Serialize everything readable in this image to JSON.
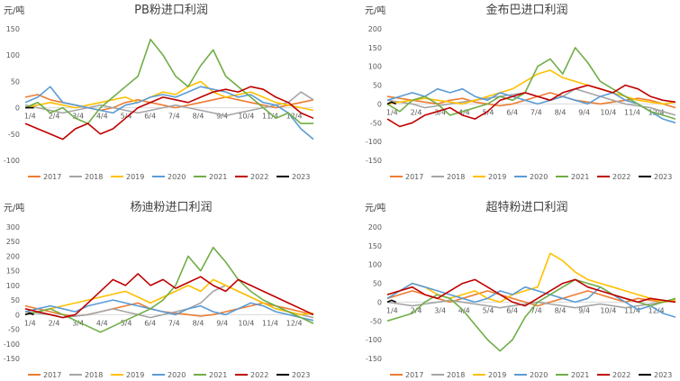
{
  "colors": {
    "2017": "#ED7D31",
    "2018": "#A5A5A5",
    "2019": "#FFC000",
    "2020": "#5B9BD5",
    "2021": "#70AD47",
    "2022": "#C00000",
    "2023": "#000000"
  },
  "chart_data": [
    {
      "type": "line",
      "title": "PB粉进口利润",
      "unit_label": "元/吨",
      "yticks": [
        150,
        100,
        50,
        0,
        -50,
        -100
      ],
      "ylim": [
        -100,
        150
      ],
      "xtick_labels": [
        "1/4",
        "2/4",
        "3/4",
        "4/4",
        "5/4",
        "6/4",
        "7/4",
        "8/4",
        "9/4",
        "10/4",
        "11/4",
        "12/4"
      ],
      "legend": [
        "2017",
        "2018",
        "2019",
        "2020",
        "2021",
        "2022",
        "2023"
      ],
      "series": [
        {
          "name": "2017",
          "values": [
            20,
            25,
            15,
            10,
            5,
            0,
            -5,
            0,
            10,
            15,
            10,
            5,
            0,
            5,
            10,
            15,
            20,
            15,
            10,
            5,
            0,
            5,
            10,
            15
          ]
        },
        {
          "name": "2018",
          "values": [
            5,
            0,
            -5,
            -10,
            -5,
            0,
            5,
            0,
            -5,
            -10,
            -5,
            0,
            5,
            0,
            -5,
            -10,
            -15,
            -10,
            -5,
            0,
            5,
            10,
            30,
            15
          ]
        },
        {
          "name": "2019",
          "values": [
            0,
            5,
            10,
            5,
            0,
            5,
            10,
            15,
            20,
            10,
            20,
            30,
            25,
            40,
            50,
            30,
            20,
            25,
            30,
            20,
            10,
            5,
            0,
            -5
          ]
        },
        {
          "name": "2020",
          "values": [
            10,
            20,
            40,
            10,
            5,
            0,
            -5,
            -10,
            5,
            10,
            20,
            25,
            20,
            30,
            40,
            35,
            30,
            20,
            25,
            10,
            5,
            -10,
            -40,
            -60
          ]
        },
        {
          "name": "2021",
          "values": [
            0,
            10,
            -10,
            0,
            -20,
            -30,
            0,
            20,
            40,
            60,
            130,
            100,
            60,
            40,
            80,
            110,
            60,
            40,
            20,
            0,
            -20,
            -10,
            -30,
            -30
          ]
        },
        {
          "name": "2022",
          "values": [
            -30,
            -40,
            -50,
            -60,
            -40,
            -30,
            -50,
            -40,
            -20,
            0,
            10,
            20,
            15,
            10,
            20,
            30,
            35,
            30,
            40,
            35,
            20,
            10,
            -10,
            -20
          ]
        },
        {
          "name": "2023",
          "values": [
            0,
            0,
            0
          ]
        }
      ]
    },
    {
      "type": "line",
      "title": "金布巴进口利润",
      "unit_label": "元/吨",
      "yticks": [
        200,
        150,
        100,
        50,
        0,
        -50,
        -100,
        -150
      ],
      "ylim": [
        -150,
        200
      ],
      "xtick_labels": [
        "1/4",
        "2/4",
        "3/4",
        "4/4",
        "5/4",
        "6/4",
        "7/4",
        "8/4",
        "9/4",
        "10/4",
        "11/4",
        "12/4"
      ],
      "legend": [
        "2017",
        "2018",
        "2019",
        "2020",
        "2021",
        "2022",
        "2023"
      ],
      "series": [
        {
          "name": "2017",
          "values": [
            20,
            15,
            10,
            5,
            0,
            10,
            15,
            5,
            0,
            -5,
            0,
            10,
            20,
            30,
            20,
            10,
            5,
            0,
            5,
            10,
            15,
            10,
            0,
            -10
          ]
        },
        {
          "name": "2018",
          "values": [
            10,
            5,
            0,
            -10,
            -5,
            0,
            5,
            10,
            15,
            20,
            25,
            30,
            20,
            10,
            20,
            40,
            30,
            20,
            10,
            0,
            -5,
            -10,
            -20,
            -30
          ]
        },
        {
          "name": "2019",
          "values": [
            0,
            5,
            10,
            15,
            10,
            5,
            0,
            10,
            20,
            30,
            40,
            60,
            80,
            90,
            70,
            60,
            50,
            40,
            30,
            20,
            10,
            5,
            0,
            5
          ]
        },
        {
          "name": "2020",
          "values": [
            10,
            20,
            30,
            20,
            40,
            30,
            40,
            20,
            10,
            30,
            20,
            10,
            0,
            10,
            20,
            10,
            0,
            20,
            30,
            10,
            0,
            -20,
            -40,
            -50
          ]
        },
        {
          "name": "2021",
          "values": [
            0,
            -20,
            10,
            20,
            0,
            -30,
            -20,
            -10,
            0,
            20,
            10,
            30,
            100,
            120,
            80,
            150,
            110,
            60,
            40,
            20,
            0,
            -20,
            -30,
            -40
          ]
        },
        {
          "name": "2022",
          "values": [
            -40,
            -60,
            -50,
            -30,
            -20,
            -10,
            -30,
            -40,
            -20,
            10,
            20,
            30,
            20,
            10,
            30,
            40,
            50,
            40,
            30,
            50,
            40,
            20,
            10,
            5
          ]
        },
        {
          "name": "2023",
          "values": [
            0,
            5,
            0
          ]
        }
      ]
    },
    {
      "type": "line",
      "title": "杨迪粉进口利润",
      "unit_label": "元/吨",
      "yticks": [
        300,
        250,
        200,
        150,
        100,
        50,
        0,
        -50,
        -100,
        -150
      ],
      "ylim": [
        -150,
        300
      ],
      "xtick_labels": [
        "1/4",
        "2/4",
        "3/4",
        "4/4",
        "5/4",
        "6/4",
        "7/4",
        "8/4",
        "9/4",
        "10/4",
        "11/4",
        "12/4"
      ],
      "legend": [
        "2017",
        "2018",
        "2019",
        "2020",
        "2021",
        "2022",
        "2023"
      ],
      "series": [
        {
          "name": "2017",
          "values": [
            30,
            20,
            10,
            0,
            -5,
            0,
            10,
            20,
            30,
            40,
            20,
            10,
            5,
            0,
            -5,
            0,
            10,
            20,
            30,
            40,
            30,
            20,
            10,
            0
          ]
        },
        {
          "name": "2018",
          "values": [
            10,
            5,
            0,
            -10,
            -5,
            0,
            10,
            20,
            10,
            0,
            -10,
            0,
            10,
            20,
            40,
            80,
            100,
            80,
            60,
            40,
            20,
            10,
            0,
            -10
          ]
        },
        {
          "name": "2019",
          "values": [
            0,
            10,
            20,
            30,
            40,
            50,
            60,
            70,
            80,
            60,
            40,
            60,
            80,
            100,
            80,
            120,
            100,
            80,
            60,
            40,
            20,
            10,
            0,
            5
          ]
        },
        {
          "name": "2020",
          "values": [
            10,
            20,
            30,
            20,
            10,
            30,
            40,
            50,
            40,
            30,
            20,
            10,
            0,
            20,
            30,
            10,
            0,
            20,
            40,
            30,
            10,
            0,
            -10,
            -20
          ]
        },
        {
          "name": "2021",
          "values": [
            0,
            10,
            20,
            0,
            -20,
            -40,
            -60,
            -40,
            -20,
            0,
            20,
            50,
            100,
            200,
            150,
            230,
            180,
            120,
            80,
            50,
            30,
            10,
            -10,
            -30
          ]
        },
        {
          "name": "2022",
          "values": [
            20,
            10,
            0,
            -10,
            0,
            40,
            80,
            120,
            100,
            140,
            100,
            120,
            90,
            110,
            130,
            100,
            80,
            120,
            100,
            80,
            60,
            40,
            20,
            0
          ]
        },
        {
          "name": "2023",
          "values": [
            0,
            5,
            0
          ]
        }
      ]
    },
    {
      "type": "line",
      "title": "超特粉进口利润",
      "unit_label": "元/吨",
      "yticks": [
        200,
        150,
        100,
        50,
        0,
        -50,
        -100,
        -150
      ],
      "ylim": [
        -150,
        200
      ],
      "xtick_labels": [
        "1/4",
        "2/4",
        "3/4",
        "4/4",
        "5/4",
        "6/4",
        "7/4",
        "8/4",
        "9/4",
        "10/4",
        "11/4",
        "12/4"
      ],
      "legend": [
        "2017",
        "2018",
        "2019",
        "2020",
        "2021",
        "2022",
        "2023"
      ],
      "series": [
        {
          "name": "2017",
          "values": [
            10,
            20,
            30,
            20,
            10,
            0,
            10,
            20,
            30,
            20,
            10,
            0,
            -10,
            0,
            10,
            20,
            30,
            20,
            10,
            0,
            10,
            5,
            0,
            5
          ]
        },
        {
          "name": "2018",
          "values": [
            0,
            -5,
            -10,
            -5,
            0,
            5,
            0,
            -5,
            -10,
            -15,
            -10,
            -5,
            0,
            -5,
            -10,
            -15,
            -10,
            -5,
            -10,
            -15,
            -10,
            -5,
            0,
            5
          ]
        },
        {
          "name": "2019",
          "values": [
            20,
            30,
            50,
            40,
            20,
            10,
            20,
            30,
            10,
            0,
            20,
            30,
            40,
            130,
            110,
            80,
            60,
            50,
            40,
            30,
            20,
            10,
            0,
            5
          ]
        },
        {
          "name": "2020",
          "values": [
            10,
            30,
            50,
            40,
            30,
            20,
            10,
            0,
            10,
            30,
            20,
            40,
            30,
            20,
            10,
            0,
            10,
            40,
            20,
            0,
            -20,
            -10,
            -30,
            -40
          ]
        },
        {
          "name": "2021",
          "values": [
            -50,
            -40,
            -30,
            0,
            20,
            10,
            -20,
            -60,
            -100,
            -130,
            -100,
            -40,
            0,
            20,
            40,
            60,
            50,
            40,
            20,
            10,
            0,
            -10,
            0,
            10
          ]
        },
        {
          "name": "2022",
          "values": [
            20,
            30,
            40,
            20,
            10,
            30,
            50,
            60,
            40,
            20,
            0,
            -10,
            10,
            30,
            50,
            60,
            40,
            30,
            20,
            10,
            0,
            10,
            5,
            0
          ]
        },
        {
          "name": "2023",
          "values": [
            0,
            5,
            0
          ]
        }
      ]
    }
  ]
}
